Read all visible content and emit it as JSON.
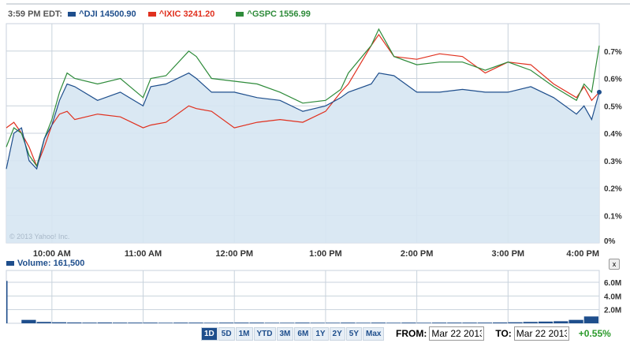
{
  "header": {
    "time": "3:59 PM EDT:"
  },
  "colors": {
    "dji": "#1e4e8c",
    "ixic": "#e0301e",
    "gspc": "#2e8b3a",
    "fill": "#d6e6f2",
    "grid": "#c8d2dc"
  },
  "chart_data": [
    {
      "type": "line",
      "x": [
        "9:30",
        "9:35",
        "9:40",
        "9:45",
        "9:50",
        "9:55",
        "10:00",
        "10:05",
        "10:10",
        "10:15",
        "10:30",
        "10:45",
        "11:00",
        "11:05",
        "11:15",
        "11:30",
        "11:35",
        "11:45",
        "12:00",
        "12:15",
        "12:30",
        "12:45",
        "13:00",
        "13:10",
        "13:15",
        "13:30",
        "13:35",
        "13:45",
        "14:00",
        "14:15",
        "14:30",
        "14:45",
        "15:00",
        "15:15",
        "15:30",
        "15:45",
        "15:50",
        "15:55",
        "16:00"
      ],
      "series": [
        {
          "name": "^DJI 14500.90",
          "values": [
            0.27,
            0.4,
            0.42,
            0.3,
            0.27,
            0.38,
            0.43,
            0.52,
            0.58,
            0.57,
            0.52,
            0.55,
            0.5,
            0.57,
            0.58,
            0.62,
            0.6,
            0.55,
            0.55,
            0.53,
            0.52,
            0.48,
            0.5,
            0.53,
            0.55,
            0.58,
            0.62,
            0.61,
            0.55,
            0.55,
            0.56,
            0.55,
            0.55,
            0.57,
            0.53,
            0.47,
            0.5,
            0.45,
            0.55
          ]
        },
        {
          "name": "^IXIC 3241.20",
          "values": [
            0.42,
            0.44,
            0.4,
            0.35,
            0.28,
            0.35,
            0.43,
            0.47,
            0.48,
            0.45,
            0.47,
            0.46,
            0.42,
            0.43,
            0.44,
            0.5,
            0.49,
            0.48,
            0.42,
            0.44,
            0.45,
            0.44,
            0.48,
            0.55,
            0.58,
            0.72,
            0.76,
            0.68,
            0.67,
            0.69,
            0.68,
            0.62,
            0.66,
            0.65,
            0.58,
            0.53,
            0.57,
            0.52,
            0.55
          ]
        },
        {
          "name": "^GSPC 1556.99",
          "values": [
            0.35,
            0.42,
            0.4,
            0.32,
            0.28,
            0.38,
            0.45,
            0.55,
            0.62,
            0.6,
            0.58,
            0.6,
            0.53,
            0.6,
            0.61,
            0.7,
            0.68,
            0.6,
            0.59,
            0.58,
            0.55,
            0.51,
            0.52,
            0.56,
            0.62,
            0.72,
            0.78,
            0.68,
            0.65,
            0.66,
            0.66,
            0.63,
            0.66,
            0.63,
            0.57,
            0.52,
            0.58,
            0.55,
            0.72
          ]
        }
      ],
      "xticks": [
        "10:00 AM",
        "11:00 AM",
        "12:00 PM",
        "1:00 PM",
        "2:00 PM",
        "3:00 PM",
        "4:00 PM"
      ],
      "yticks": [
        "0%",
        "0.1%",
        "0.2%",
        "0.3%",
        "0.4%",
        "0.5%",
        "0.6%",
        "0.7%"
      ],
      "ylim": [
        0,
        0.8
      ],
      "grid": true,
      "watermark": "© 2013 Yahoo! Inc."
    },
    {
      "type": "bar",
      "title": "Volume: 161,500",
      "values": [
        6.2,
        0.5,
        0.2,
        0.15,
        0.12,
        0.1,
        0.12,
        0.1,
        0.1,
        0.1,
        0.08,
        0.1,
        0.1,
        0.08,
        0.1,
        0.1,
        0.1,
        0.08,
        0.08,
        0.1,
        0.08,
        0.08,
        0.1,
        0.08,
        0.1,
        0.08,
        0.1,
        0.08,
        0.1,
        0.1,
        0.1,
        0.1,
        0.12,
        0.15,
        0.2,
        0.25,
        0.3,
        0.5,
        1.0
      ],
      "yticks": [
        "2.0M",
        "4.0M",
        "6.0M"
      ],
      "ylim": [
        0,
        7.5
      ]
    }
  ],
  "controls": {
    "ranges": [
      "1D",
      "5D",
      "1M",
      "YTD",
      "3M",
      "6M",
      "1Y",
      "2Y",
      "5Y",
      "Max"
    ],
    "active": "1D",
    "from_label": "FROM:",
    "from": "Mar 22 2013",
    "to_label": "TO:",
    "to": "Mar 22 2013",
    "change": "+0.55%",
    "close": "x"
  }
}
